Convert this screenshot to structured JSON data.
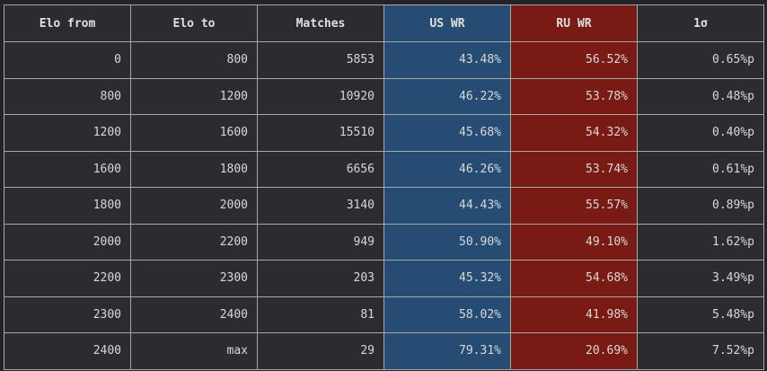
{
  "table": {
    "headers": [
      "Elo from",
      "Elo to",
      "Matches",
      "US WR",
      "RU WR",
      "1σ"
    ],
    "rows": [
      [
        "0",
        "800",
        "5853",
        "43.48%",
        "56.52%",
        "0.65%p"
      ],
      [
        "800",
        "1200",
        "10920",
        "46.22%",
        "53.78%",
        "0.48%p"
      ],
      [
        "1200",
        "1600",
        "15510",
        "45.68%",
        "54.32%",
        "0.40%p"
      ],
      [
        "1600",
        "1800",
        "6656",
        "46.26%",
        "53.74%",
        "0.61%p"
      ],
      [
        "1800",
        "2000",
        "3140",
        "44.43%",
        "55.57%",
        "0.89%p"
      ],
      [
        "2000",
        "2200",
        "949",
        "50.90%",
        "49.10%",
        "1.62%p"
      ],
      [
        "2200",
        "2300",
        "203",
        "45.32%",
        "54.68%",
        "3.49%p"
      ],
      [
        "2300",
        "2400",
        "81",
        "58.02%",
        "41.98%",
        "5.48%p"
      ],
      [
        "2400",
        "max",
        "29",
        "79.31%",
        "20.69%",
        "7.52%p"
      ]
    ]
  }
}
